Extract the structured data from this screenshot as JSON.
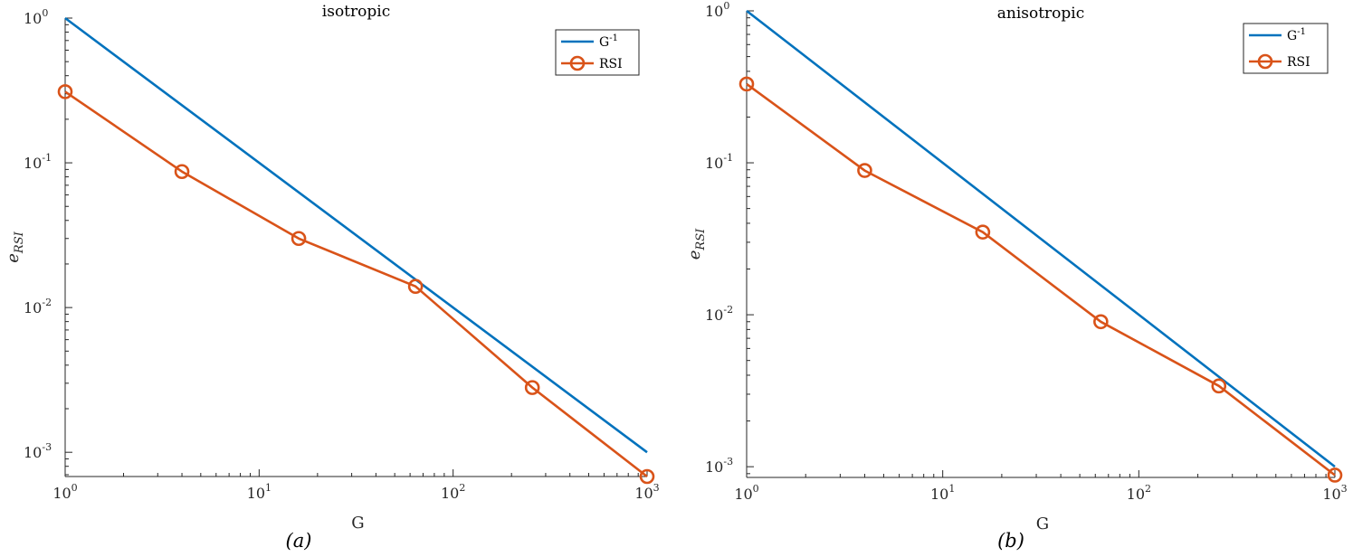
{
  "chart_data": [
    {
      "type": "line",
      "title": "isotropic",
      "xlabel": "G",
      "ylabel_main": "e",
      "ylabel_sub": "RSI",
      "caption": "(a)",
      "xscale": "log",
      "yscale": "log",
      "xlim": [
        1,
        1000
      ],
      "ylim": [
        0.00068,
        1
      ],
      "xticks": [
        {
          "base": "10",
          "exp": "0"
        },
        {
          "base": "10",
          "exp": "1"
        },
        {
          "base": "10",
          "exp": "2"
        },
        {
          "base": "10",
          "exp": "3"
        }
      ],
      "yticks": [
        {
          "base": "10",
          "exp": "-3"
        },
        {
          "base": "10",
          "exp": "-2"
        },
        {
          "base": "10",
          "exp": "-1"
        },
        {
          "base": "10",
          "exp": "0"
        }
      ],
      "legend_position": "top-right",
      "series": [
        {
          "name_base": "G",
          "name_exp": "-1",
          "color": "#0072BD",
          "marker": "none",
          "x": [
            1,
            1000
          ],
          "y": [
            1,
            0.001
          ]
        },
        {
          "name_base": "RSI",
          "name_exp": "",
          "color": "#D95319",
          "marker": "circle",
          "x": [
            1,
            4,
            16,
            64,
            256,
            1000
          ],
          "y": [
            0.31,
            0.087,
            0.03,
            0.014,
            0.0028,
            0.00068
          ]
        }
      ]
    },
    {
      "type": "line",
      "title": "anisotropic",
      "xlabel": "G",
      "ylabel_main": "e",
      "ylabel_sub": "RSI",
      "caption": "(b)",
      "xscale": "log",
      "yscale": "log",
      "xlim": [
        1,
        1000
      ],
      "ylim": [
        0.00085,
        1
      ],
      "xticks": [
        {
          "base": "10",
          "exp": "0"
        },
        {
          "base": "10",
          "exp": "1"
        },
        {
          "base": "10",
          "exp": "2"
        },
        {
          "base": "10",
          "exp": "3"
        }
      ],
      "yticks": [
        {
          "base": "10",
          "exp": "-3"
        },
        {
          "base": "10",
          "exp": "-2"
        },
        {
          "base": "10",
          "exp": "-1"
        },
        {
          "base": "10",
          "exp": "0"
        }
      ],
      "legend_position": "top-right",
      "series": [
        {
          "name_base": "G",
          "name_exp": "-1",
          "color": "#0072BD",
          "marker": "none",
          "x": [
            1,
            1000
          ],
          "y": [
            1,
            0.001
          ]
        },
        {
          "name_base": "RSI",
          "name_exp": "",
          "color": "#D95319",
          "marker": "circle",
          "x": [
            1,
            4,
            16,
            64,
            256,
            1000
          ],
          "y": [
            0.33,
            0.089,
            0.035,
            0.009,
            0.0034,
            0.00088
          ]
        }
      ]
    }
  ]
}
